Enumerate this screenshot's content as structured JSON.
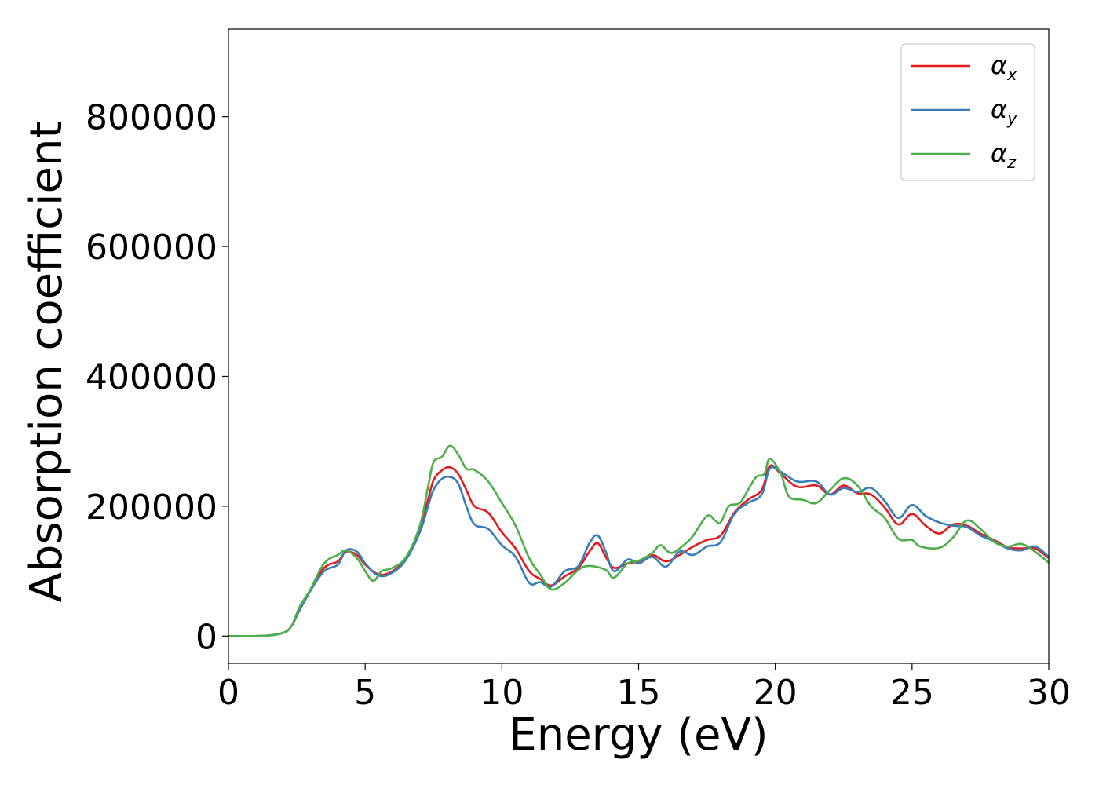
{
  "chart_data": {
    "type": "line",
    "xlabel": "Energy (eV)",
    "ylabel": "Absorption coefficient",
    "xlim": [
      0,
      30
    ],
    "ylim": [
      -42000,
      935000
    ],
    "x_ticks": [
      "0",
      "5",
      "10",
      "15",
      "20",
      "25",
      "30"
    ],
    "y_ticks": [
      "0",
      "200000",
      "400000",
      "600000",
      "800000"
    ],
    "x_tick_values": [
      0,
      5,
      10,
      15,
      20,
      25,
      30
    ],
    "y_tick_values": [
      0,
      200000,
      400000,
      600000,
      800000
    ],
    "grid": false,
    "legend_position": "top-right",
    "series": [
      {
        "name": "α_x",
        "symbol": "α",
        "subscript": "x",
        "color": "#e41a1c",
        "points": [
          [
            0,
            0
          ],
          [
            1,
            0
          ],
          [
            1.5,
            1000
          ],
          [
            2,
            5000
          ],
          [
            2.3,
            15000
          ],
          [
            2.6,
            40000
          ],
          [
            3,
            70000
          ],
          [
            3.5,
            105000
          ],
          [
            4,
            115000
          ],
          [
            4.3,
            130000
          ],
          [
            4.7,
            125000
          ],
          [
            5,
            110000
          ],
          [
            5.5,
            95000
          ],
          [
            6,
            100000
          ],
          [
            6.5,
            120000
          ],
          [
            7,
            165000
          ],
          [
            7.3,
            210000
          ],
          [
            7.5,
            240000
          ],
          [
            7.8,
            255000
          ],
          [
            8.1,
            260000
          ],
          [
            8.4,
            250000
          ],
          [
            8.7,
            225000
          ],
          [
            9,
            200000
          ],
          [
            9.5,
            190000
          ],
          [
            10,
            160000
          ],
          [
            10.5,
            135000
          ],
          [
            11,
            100000
          ],
          [
            11.4,
            88000
          ],
          [
            11.8,
            78000
          ],
          [
            12.3,
            92000
          ],
          [
            12.8,
            105000
          ],
          [
            13.2,
            130000
          ],
          [
            13.5,
            143000
          ],
          [
            13.8,
            122000
          ],
          [
            14.1,
            105000
          ],
          [
            14.6,
            112000
          ],
          [
            15,
            115000
          ],
          [
            15.5,
            125000
          ],
          [
            16,
            115000
          ],
          [
            16.5,
            125000
          ],
          [
            17,
            138000
          ],
          [
            17.5,
            148000
          ],
          [
            18,
            155000
          ],
          [
            18.5,
            190000
          ],
          [
            19,
            210000
          ],
          [
            19.5,
            225000
          ],
          [
            19.8,
            262000
          ],
          [
            20.2,
            250000
          ],
          [
            20.8,
            230000
          ],
          [
            21.5,
            232000
          ],
          [
            22,
            218000
          ],
          [
            22.5,
            232000
          ],
          [
            23,
            220000
          ],
          [
            23.5,
            218000
          ],
          [
            24,
            198000
          ],
          [
            24.5,
            172000
          ],
          [
            25,
            188000
          ],
          [
            25.5,
            170000
          ],
          [
            26,
            158000
          ],
          [
            26.5,
            172000
          ],
          [
            27,
            170000
          ],
          [
            27.5,
            158000
          ],
          [
            28,
            148000
          ],
          [
            28.5,
            137000
          ],
          [
            29,
            135000
          ],
          [
            29.5,
            135000
          ],
          [
            30,
            120000
          ]
        ]
      },
      {
        "name": "α_y",
        "symbol": "α",
        "subscript": "y",
        "color": "#377eb8",
        "points": [
          [
            0,
            0
          ],
          [
            1,
            0
          ],
          [
            1.5,
            1000
          ],
          [
            2,
            5000
          ],
          [
            2.3,
            15000
          ],
          [
            2.6,
            40000
          ],
          [
            3,
            70000
          ],
          [
            3.5,
            100000
          ],
          [
            4,
            110000
          ],
          [
            4.3,
            132000
          ],
          [
            4.7,
            130000
          ],
          [
            5,
            112000
          ],
          [
            5.5,
            93000
          ],
          [
            6,
            98000
          ],
          [
            6.5,
            118000
          ],
          [
            7,
            160000
          ],
          [
            7.3,
            200000
          ],
          [
            7.5,
            225000
          ],
          [
            7.8,
            242000
          ],
          [
            8.1,
            245000
          ],
          [
            8.4,
            235000
          ],
          [
            8.7,
            200000
          ],
          [
            9,
            172000
          ],
          [
            9.5,
            165000
          ],
          [
            10,
            140000
          ],
          [
            10.5,
            122000
          ],
          [
            11,
            82000
          ],
          [
            11.4,
            83000
          ],
          [
            11.8,
            76000
          ],
          [
            12.3,
            100000
          ],
          [
            12.8,
            108000
          ],
          [
            13.2,
            143000
          ],
          [
            13.5,
            155000
          ],
          [
            13.8,
            130000
          ],
          [
            14.1,
            100000
          ],
          [
            14.6,
            118000
          ],
          [
            15,
            112000
          ],
          [
            15.5,
            122000
          ],
          [
            16,
            107000
          ],
          [
            16.5,
            130000
          ],
          [
            17,
            125000
          ],
          [
            17.5,
            138000
          ],
          [
            18,
            145000
          ],
          [
            18.5,
            188000
          ],
          [
            19,
            205000
          ],
          [
            19.5,
            218000
          ],
          [
            19.8,
            258000
          ],
          [
            20.2,
            253000
          ],
          [
            20.8,
            238000
          ],
          [
            21.5,
            238000
          ],
          [
            22,
            218000
          ],
          [
            22.5,
            228000
          ],
          [
            23,
            222000
          ],
          [
            23.5,
            228000
          ],
          [
            24,
            208000
          ],
          [
            24.5,
            182000
          ],
          [
            25,
            202000
          ],
          [
            25.5,
            185000
          ],
          [
            26,
            175000
          ],
          [
            26.5,
            170000
          ],
          [
            27,
            168000
          ],
          [
            27.5,
            155000
          ],
          [
            28,
            146000
          ],
          [
            28.5,
            135000
          ],
          [
            29,
            132000
          ],
          [
            29.5,
            138000
          ],
          [
            30,
            122000
          ]
        ]
      },
      {
        "name": "α_z",
        "symbol": "α",
        "subscript": "z",
        "color": "#4daf4a",
        "points": [
          [
            0,
            0
          ],
          [
            1,
            0
          ],
          [
            1.5,
            1000
          ],
          [
            2,
            5000
          ],
          [
            2.3,
            15000
          ],
          [
            2.6,
            45000
          ],
          [
            3,
            72000
          ],
          [
            3.5,
            112000
          ],
          [
            4,
            125000
          ],
          [
            4.3,
            132000
          ],
          [
            4.7,
            120000
          ],
          [
            5,
            100000
          ],
          [
            5.3,
            85000
          ],
          [
            5.6,
            100000
          ],
          [
            6,
            105000
          ],
          [
            6.5,
            122000
          ],
          [
            7,
            170000
          ],
          [
            7.3,
            230000
          ],
          [
            7.5,
            268000
          ],
          [
            7.8,
            276000
          ],
          [
            8.1,
            293000
          ],
          [
            8.4,
            280000
          ],
          [
            8.7,
            258000
          ],
          [
            9,
            256000
          ],
          [
            9.5,
            238000
          ],
          [
            10,
            205000
          ],
          [
            10.5,
            170000
          ],
          [
            11,
            120000
          ],
          [
            11.4,
            95000
          ],
          [
            11.8,
            72000
          ],
          [
            12.3,
            82000
          ],
          [
            12.8,
            102000
          ],
          [
            13.2,
            108000
          ],
          [
            13.8,
            102000
          ],
          [
            14.1,
            90000
          ],
          [
            14.6,
            112000
          ],
          [
            15,
            116000
          ],
          [
            15.5,
            128000
          ],
          [
            15.8,
            140000
          ],
          [
            16.2,
            128000
          ],
          [
            16.7,
            142000
          ],
          [
            17,
            155000
          ],
          [
            17.5,
            185000
          ],
          [
            17.8,
            178000
          ],
          [
            18,
            175000
          ],
          [
            18.3,
            200000
          ],
          [
            18.7,
            205000
          ],
          [
            19,
            225000
          ],
          [
            19.3,
            245000
          ],
          [
            19.6,
            250000
          ],
          [
            19.8,
            273000
          ],
          [
            20.2,
            250000
          ],
          [
            20.5,
            215000
          ],
          [
            21,
            210000
          ],
          [
            21.5,
            205000
          ],
          [
            22,
            225000
          ],
          [
            22.5,
            243000
          ],
          [
            23,
            232000
          ],
          [
            23.5,
            200000
          ],
          [
            24,
            182000
          ],
          [
            24.5,
            150000
          ],
          [
            25,
            148000
          ],
          [
            25.3,
            138000
          ],
          [
            26,
            136000
          ],
          [
            26.5,
            152000
          ],
          [
            27,
            178000
          ],
          [
            27.5,
            165000
          ],
          [
            28,
            145000
          ],
          [
            28.5,
            138000
          ],
          [
            29,
            142000
          ],
          [
            29.5,
            130000
          ],
          [
            30,
            113000
          ]
        ]
      }
    ]
  }
}
